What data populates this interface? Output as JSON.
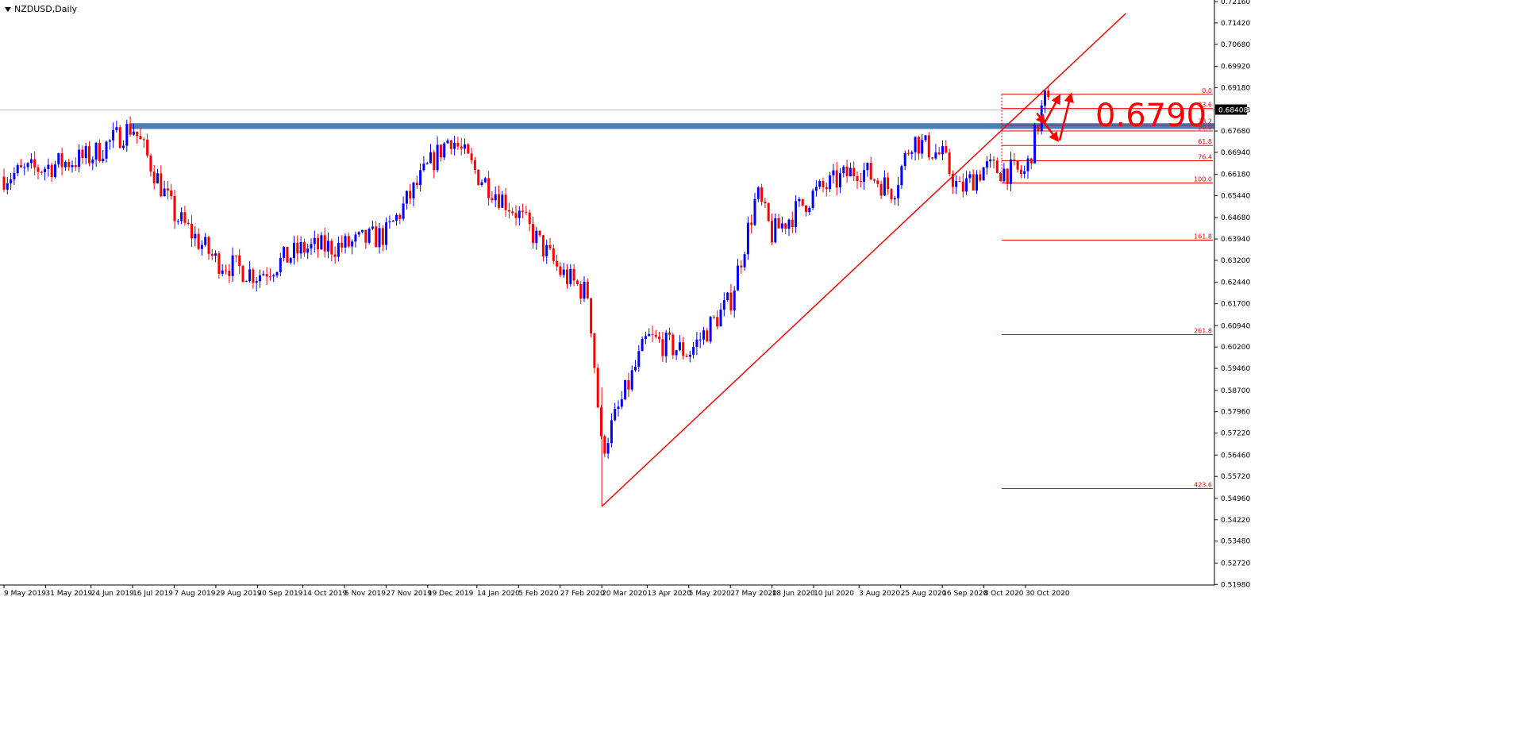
{
  "window": {
    "symbol_title": "NZDUSD,Daily"
  },
  "colors": {
    "background": "#ffffff",
    "bull": "#0000ff",
    "bear": "#ff0000",
    "resistance_zone": "#4a7fb5",
    "trendline": "#ff0000",
    "fibo": "#ff0000",
    "price_tag_bg": "#000000",
    "price_tag_text": "#ffffff",
    "axis": "#000000"
  },
  "chart_data": {
    "type": "candlestick",
    "title": "NZDUSD,Daily",
    "ylim": [
      0.5196,
      0.7216
    ],
    "y_ticks": [
      "0.72160",
      "0.71420",
      "0.70680",
      "0.69920",
      "0.69180",
      "0.68408",
      "0.67680",
      "0.66940",
      "0.66180",
      "0.65440",
      "0.64680",
      "0.63940",
      "0.63200",
      "0.62440",
      "0.61700",
      "0.60940",
      "0.60200",
      "0.59460",
      "0.58700",
      "0.57960",
      "0.57220",
      "0.56460",
      "0.55720",
      "0.54960",
      "0.54220",
      "0.53480",
      "0.52720",
      "0.51980"
    ],
    "x_ticks": [
      "9 May 2019",
      "31 May 2019",
      "24 Jun 2019",
      "16 Jul 2019",
      "7 Aug 2019",
      "29 Aug 2019",
      "20 Sep 2019",
      "14 Oct 2019",
      "5 Nov 2019",
      "27 Nov 2019",
      "19 Dec 2019",
      "14 Jan 2020",
      "5 Feb 2020",
      "27 Feb 2020",
      "20 Mar 2020",
      "13 Apr 2020",
      "5 May 2020",
      "27 May 2020",
      "18 Jun 2020",
      "10 Jul 2020",
      "3 Aug 2020",
      "25 Aug 2020",
      "16 Sep 2020",
      "8 Oct 2020",
      "30 Oct 2020"
    ],
    "current_price": "0.68408",
    "price_path": [
      [
        "9 May 2019",
        0.661
      ],
      [
        "24 Jun 2019",
        0.668
      ],
      [
        "16 Jul 2019",
        0.6785
      ],
      [
        "7 Aug 2019",
        0.648
      ],
      [
        "29 Aug 2019",
        0.632
      ],
      [
        "20 Sep 2019",
        0.627
      ],
      [
        "14 Oct 2019",
        0.636
      ],
      [
        "5 Nov 2019",
        0.637
      ],
      [
        "27 Nov 2019",
        0.641
      ],
      [
        "19 Dec 2019",
        0.664
      ],
      [
        "31 Dec 2019",
        0.675
      ],
      [
        "14 Jan 2020",
        0.662
      ],
      [
        "5 Feb 2020",
        0.648
      ],
      [
        "27 Feb 2020",
        0.628
      ],
      [
        "13 Mar 2020",
        0.62
      ],
      [
        "20 Mar 2020",
        0.566
      ],
      [
        "13 Apr 2020",
        0.605
      ],
      [
        "5 May 2020",
        0.6
      ],
      [
        "27 May 2020",
        0.618
      ],
      [
        "10 Jun 2020",
        0.655
      ],
      [
        "18 Jun 2020",
        0.641
      ],
      [
        "10 Jul 2020",
        0.655
      ],
      [
        "3 Aug 2020",
        0.664
      ],
      [
        "21 Aug 2020",
        0.656
      ],
      [
        "31 Aug 2020",
        0.674
      ],
      [
        "16 Sep 2020",
        0.668
      ],
      [
        "25 Sep 2020",
        0.656
      ],
      [
        "8 Oct 2020",
        0.664
      ],
      [
        "30 Oct 2020",
        0.662
      ],
      [
        "9 Nov 2020",
        0.688
      ],
      [
        "12 Nov 2020",
        0.684
      ]
    ],
    "resistance_zone": {
      "low": 0.6775,
      "high": 0.6795
    },
    "resistance_label": "0.6790",
    "trendline": {
      "from": [
        "20 Mar 2020",
        0.5468
      ],
      "to": [
        "22 Dec 2020",
        0.7175
      ]
    },
    "fibo_levels": [
      {
        "label": "0.0",
        "price": 0.6895
      },
      {
        "label": "23.6",
        "price": 0.6846
      },
      {
        "label": "38.2",
        "price": 0.6788
      },
      {
        "label": "50.0",
        "price": 0.6768
      },
      {
        "label": "61.8",
        "price": 0.6718
      },
      {
        "label": "76.4",
        "price": 0.6665
      },
      {
        "label": "100.0",
        "price": 0.6588
      },
      {
        "label": "161.8",
        "price": 0.639
      },
      {
        "label": "261.8",
        "price": 0.6063
      },
      {
        "label": "423.6",
        "price": 0.553
      }
    ],
    "annotation_arrows": [
      {
        "from": [
          "5 Nov 2020",
          0.683
        ],
        "to": [
          "9 Nov 2020",
          0.6795
        ]
      },
      {
        "from": [
          "9 Nov 2020",
          0.6795
        ],
        "to": [
          "16 Nov 2020",
          0.6735
        ]
      },
      {
        "from": [
          "9 Nov 2020",
          0.6795
        ],
        "to": [
          "17 Nov 2020",
          0.689
        ]
      },
      {
        "from": [
          "17 Nov 2020",
          0.6735
        ],
        "to": [
          "23 Nov 2020",
          0.6895
        ]
      }
    ]
  }
}
